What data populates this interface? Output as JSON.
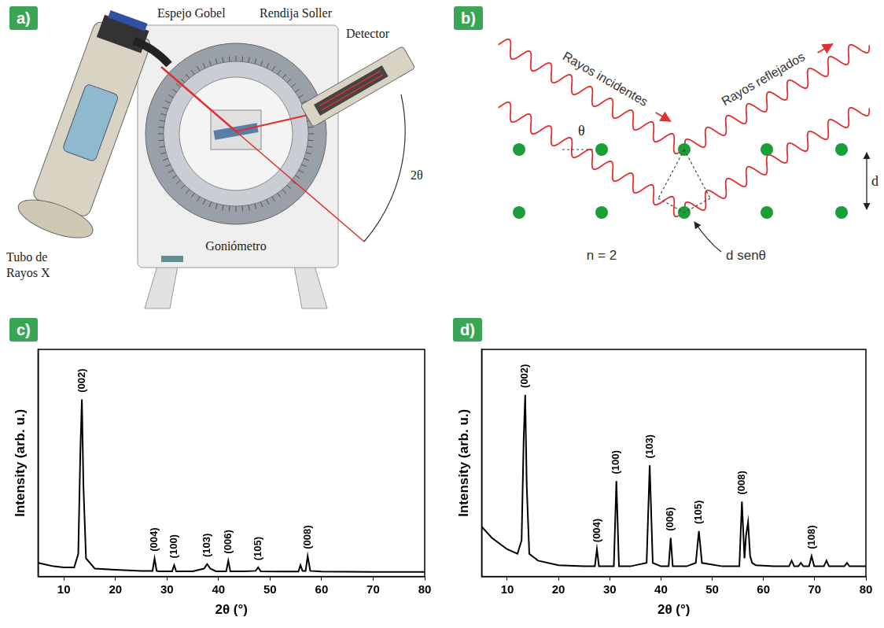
{
  "figure": {
    "a": {
      "panel": "a)",
      "labels": {
        "mirror": "Espejo Gobel",
        "slit": "Rendija Soller",
        "detector": "Detector",
        "tube": [
          "Tubo de",
          "Rayos X"
        ],
        "goniometer": "Goniómetro",
        "angle": "2θ"
      }
    },
    "b": {
      "panel": "b)",
      "labels": {
        "incident": "Rayos incidentes",
        "reflected": "Rayos reflejados",
        "angle": "θ",
        "spacing": "d",
        "order": "n = 2",
        "path_difference": "d senθ"
      }
    }
  },
  "chart_data": [
    {
      "panel": "c)",
      "type": "line",
      "color": "#000000",
      "marker": "none",
      "xlabel": "2θ (°)",
      "ylabel": "Intensity (arb. u.)",
      "x": [
        5,
        8,
        10,
        12,
        12.8,
        13.2,
        13.5,
        13.8,
        14.3,
        16,
        20,
        25,
        27.2,
        27.6,
        28.0,
        28.5,
        31.0,
        31.4,
        31.8,
        35,
        37.2,
        37.8,
        38.4,
        39.5,
        41.5,
        41.9,
        42.3,
        45,
        47.2,
        47.7,
        48.2,
        52,
        55.5,
        55.9,
        56.3,
        56.9,
        57.3,
        57.8,
        60,
        65,
        70,
        75,
        80
      ],
      "values": [
        6,
        4.5,
        4,
        4,
        10,
        55,
        78,
        40,
        8,
        3.5,
        3,
        2.5,
        2.5,
        8,
        2.5,
        2.3,
        2.3,
        5,
        2.3,
        2.3,
        3.5,
        5.5,
        3.5,
        2.3,
        2.3,
        7,
        2.3,
        2.3,
        2.5,
        4,
        2.3,
        2.2,
        2.2,
        5,
        2.5,
        2.5,
        9,
        2.5,
        2.2,
        2.1,
        2,
        2,
        2
      ],
      "xlim": [
        5,
        80
      ],
      "xticks": [
        10,
        20,
        30,
        40,
        50,
        60,
        70,
        80
      ],
      "ylim": [
        0,
        100
      ],
      "yticks": [],
      "tick_labels": "x",
      "grid": false,
      "annotations": [
        {
          "x": 13.5,
          "y": 80,
          "text": "(002)"
        },
        {
          "x": 27.6,
          "y": 10,
          "text": "(004)"
        },
        {
          "x": 31.4,
          "y": 7,
          "text": "(100)"
        },
        {
          "x": 37.8,
          "y": 7.5,
          "text": "(103)"
        },
        {
          "x": 41.9,
          "y": 9,
          "text": "(006)"
        },
        {
          "x": 47.7,
          "y": 6,
          "text": "(105)"
        },
        {
          "x": 57.3,
          "y": 11,
          "text": "(008)"
        }
      ]
    },
    {
      "panel": "d)",
      "type": "line",
      "color": "#000000",
      "marker": "none",
      "xlabel": "2θ (°)",
      "ylabel": "Intensity (arb. u.)",
      "x": [
        5,
        7,
        10,
        12,
        12.8,
        13.2,
        13.5,
        13.8,
        14.3,
        16,
        20,
        25,
        27.1,
        27.5,
        27.9,
        29,
        30.8,
        31.3,
        31.8,
        34,
        37.2,
        37.8,
        38.4,
        40,
        41.5,
        41.9,
        42.3,
        45,
        46.8,
        47.4,
        48.0,
        52,
        55.3,
        55.8,
        56.3,
        56.6,
        57.0,
        57.4,
        57.8,
        58.5,
        62,
        65.0,
        65.5,
        66.0,
        66.8,
        67.3,
        67.8,
        68.9,
        69.4,
        69.9,
        71.8,
        72.3,
        72.8,
        75.8,
        76.3,
        76.8,
        80
      ],
      "values": [
        22,
        17,
        12,
        10,
        16,
        60,
        80,
        40,
        10,
        7,
        5,
        4.5,
        4.5,
        12,
        4.5,
        4.5,
        4.5,
        42,
        4.5,
        4.5,
        6,
        49,
        6,
        4.5,
        4.5,
        17,
        4.5,
        4.5,
        6,
        20,
        6,
        4.5,
        4.5,
        33,
        8,
        18,
        24,
        9,
        6,
        5,
        4.5,
        4.5,
        7,
        4.5,
        4.5,
        6,
        4.5,
        4.5,
        9,
        4.5,
        4.5,
        7,
        4.5,
        4.5,
        6,
        4.5,
        4.5
      ],
      "xlim": [
        5,
        80
      ],
      "xticks": [
        10,
        20,
        30,
        40,
        50,
        60,
        70,
        80
      ],
      "ylim": [
        0,
        100
      ],
      "yticks": [],
      "tick_labels": "x",
      "grid": false,
      "annotations": [
        {
          "x": 13.5,
          "y": 82,
          "text": "(002)"
        },
        {
          "x": 27.5,
          "y": 14,
          "text": "(004)"
        },
        {
          "x": 31.3,
          "y": 44,
          "text": "(100)"
        },
        {
          "x": 37.8,
          "y": 51,
          "text": "(103)"
        },
        {
          "x": 41.9,
          "y": 19,
          "text": "(006)"
        },
        {
          "x": 47.4,
          "y": 22,
          "text": "(105)"
        },
        {
          "x": 55.8,
          "y": 35,
          "text": "(008)"
        },
        {
          "x": 69.4,
          "y": 11,
          "text": "(108)"
        }
      ]
    }
  ]
}
